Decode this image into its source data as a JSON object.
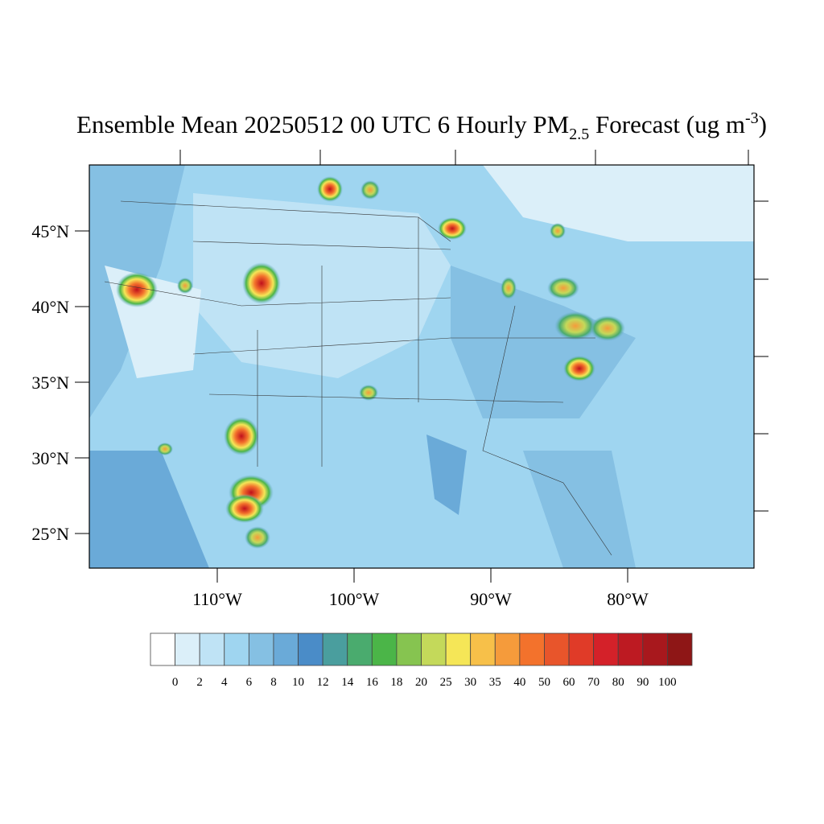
{
  "title": {
    "main": "Ensemble Mean 20250512 00 UTC 6 Hourly PM",
    "subscript": "2.5",
    "after_subscript": " Forecast (ug m",
    "superscript": "-3",
    "end": ")"
  },
  "map": {
    "lat_labels": [
      "45°N",
      "40°N",
      "35°N",
      "30°N",
      "25°N"
    ],
    "lon_labels": [
      "110°W",
      "100°W",
      "90°W",
      "80°W"
    ]
  },
  "colorbar": {
    "levels": [
      0,
      2,
      4,
      6,
      8,
      10,
      12,
      14,
      16,
      18,
      20,
      25,
      30,
      35,
      40,
      50,
      60,
      70,
      80,
      90,
      100
    ],
    "colors": [
      "#ffffff",
      "#dbeff9",
      "#bfe3f5",
      "#9fd5f0",
      "#85c0e3",
      "#6aaad8",
      "#4a8cc8",
      "#4a9e9e",
      "#4aab6e",
      "#4bb548",
      "#86c450",
      "#c4d95a",
      "#f5e657",
      "#f7c049",
      "#f59b3b",
      "#f3722c",
      "#e8552b",
      "#e03b28",
      "#d42129",
      "#bd1a22",
      "#a8181d",
      "#8e1616"
    ]
  }
}
